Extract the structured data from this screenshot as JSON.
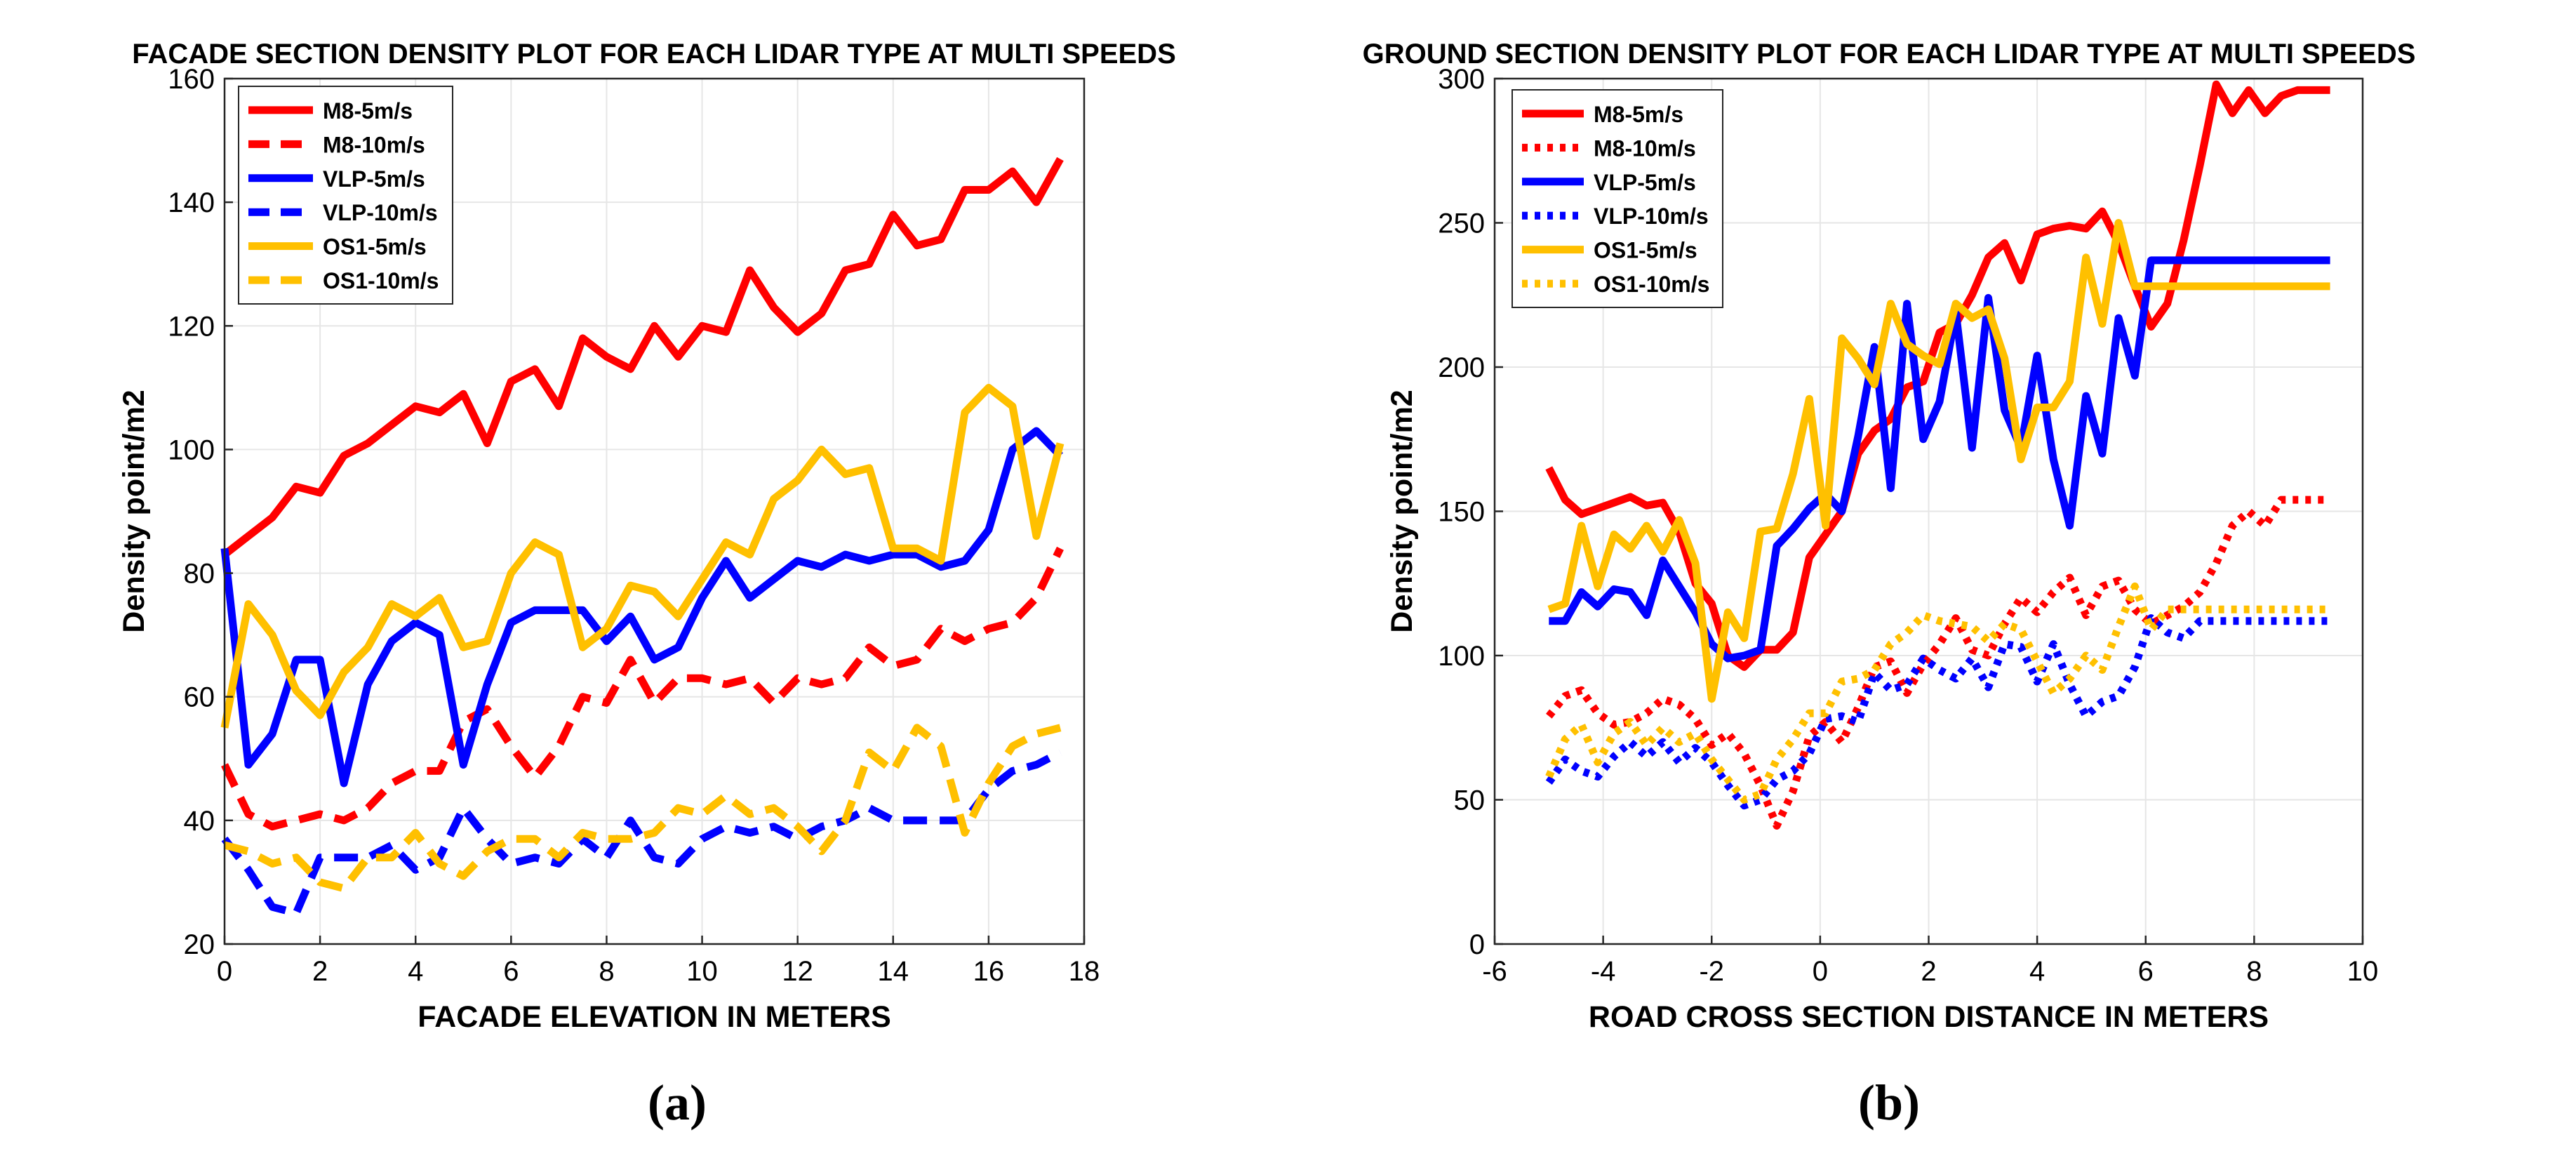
{
  "chart_data": [
    {
      "type": "line",
      "title": "FACADE SECTION DENSITY PLOT FOR EACH LIDAR TYPE AT MULTI SPEEDS",
      "xlabel": "FACADE ELEVATION IN METERS",
      "ylabel": "Density point/m2",
      "xlim": [
        0,
        18
      ],
      "ylim": [
        20,
        160
      ],
      "xticks": [
        0,
        2,
        4,
        6,
        8,
        10,
        12,
        14,
        16,
        18
      ],
      "yticks": [
        20,
        40,
        60,
        80,
        100,
        120,
        140,
        160
      ],
      "grid": true,
      "legend_position": "top-left",
      "caption": "(a)",
      "x": [
        0,
        0.5,
        1,
        1.5,
        2,
        2.5,
        3,
        3.5,
        4,
        4.5,
        5,
        5.5,
        6,
        6.5,
        7,
        7.5,
        8,
        8.5,
        9,
        9.5,
        10,
        10.5,
        11,
        11.5,
        12,
        12.5,
        13,
        13.5,
        14,
        14.5,
        15,
        15.5,
        16,
        16.5,
        17,
        17.5
      ],
      "series": [
        {
          "name": "M8-5m/s",
          "color": "#ff0000",
          "style": "solid",
          "values": [
            83,
            86,
            89,
            94,
            93,
            99,
            101,
            104,
            107,
            106,
            109,
            101,
            111,
            113,
            107,
            118,
            115,
            113,
            120,
            115,
            120,
            119,
            129,
            123,
            119,
            122,
            129,
            130,
            138,
            133,
            134,
            142,
            142,
            145,
            140,
            147
          ]
        },
        {
          "name": "M8-10m/s",
          "color": "#ff0000",
          "style": "dashed",
          "values": [
            49,
            41,
            39,
            40,
            41,
            40,
            42,
            46,
            48,
            48,
            56,
            58,
            52,
            47,
            52,
            60,
            59,
            66,
            59,
            63,
            63,
            62,
            63,
            59,
            63,
            62,
            63,
            68,
            65,
            66,
            71,
            69,
            71,
            72,
            76,
            84
          ]
        },
        {
          "name": "VLP-5m/s",
          "color": "#0000ff",
          "style": "solid",
          "values": [
            84,
            49,
            54,
            66,
            66,
            46,
            62,
            69,
            72,
            70,
            49,
            62,
            72,
            74,
            74,
            74,
            69,
            73,
            66,
            68,
            76,
            82,
            76,
            79,
            82,
            81,
            83,
            82,
            83,
            83,
            81,
            82,
            87,
            100,
            103,
            99
          ]
        },
        {
          "name": "VLP-10m/s",
          "color": "#0000ff",
          "style": "dashed",
          "values": [
            37,
            32,
            26,
            25,
            34,
            34,
            34,
            36,
            32,
            34,
            42,
            37,
            33,
            34,
            33,
            37,
            34,
            40,
            34,
            33,
            37,
            39,
            38,
            39,
            37,
            39,
            40,
            42,
            40,
            40,
            40,
            40,
            45,
            48,
            49,
            51
          ]
        },
        {
          "name": "OS1-5m/s",
          "color": "#ffc000",
          "style": "solid",
          "values": [
            55,
            75,
            70,
            61,
            57,
            64,
            68,
            75,
            73,
            76,
            68,
            69,
            80,
            85,
            83,
            68,
            71,
            78,
            77,
            73,
            79,
            85,
            83,
            92,
            95,
            100,
            96,
            97,
            84,
            84,
            82,
            106,
            110,
            107,
            86,
            101
          ]
        },
        {
          "name": "OS1-10m/s",
          "color": "#ffc000",
          "style": "dashed",
          "values": [
            36,
            35,
            33,
            34,
            30,
            29,
            34,
            34,
            38,
            33,
            31,
            35,
            37,
            37,
            34,
            38,
            37,
            37,
            38,
            42,
            41,
            44,
            41,
            42,
            39,
            35,
            40,
            51,
            48,
            55,
            52,
            38,
            46,
            52,
            54,
            55
          ]
        }
      ]
    },
    {
      "type": "line",
      "title": "GROUND SECTION DENSITY PLOT FOR EACH LIDAR TYPE AT MULTI SPEEDS",
      "xlabel": "ROAD CROSS SECTION DISTANCE IN METERS",
      "ylabel": "Density point/m2",
      "xlim": [
        -6,
        10
      ],
      "ylim": [
        0,
        300
      ],
      "xticks": [
        -6,
        -4,
        -2,
        0,
        2,
        4,
        6,
        8,
        10
      ],
      "yticks": [
        0,
        50,
        100,
        150,
        200,
        250,
        300
      ],
      "grid": true,
      "legend_position": "top-left",
      "caption": "(b)",
      "x": [
        -5,
        -4.7,
        -4.4,
        -4.1,
        -3.8,
        -3.5,
        -3.2,
        -2.9,
        -2.6,
        -2.3,
        -2,
        -1.7,
        -1.4,
        -1.1,
        -0.8,
        -0.5,
        -0.2,
        0.1,
        0.4,
        0.7,
        1,
        1.3,
        1.6,
        1.9,
        2.2,
        2.5,
        2.8,
        3.1,
        3.4,
        3.7,
        4,
        4.3,
        4.6,
        4.9,
        5.2,
        5.5,
        5.8,
        6.1,
        6.4,
        6.7,
        7,
        7.3,
        7.6,
        7.9,
        8.2,
        8.5,
        8.8,
        9.1,
        9.4
      ],
      "series": [
        {
          "name": "M8-5m/s",
          "color": "#ff0000",
          "style": "solid",
          "values": [
            165,
            154,
            149,
            151,
            153,
            155,
            152,
            153,
            143,
            125,
            118,
            100,
            96,
            102,
            102,
            108,
            134,
            142,
            150,
            170,
            178,
            182,
            193,
            195,
            212,
            215,
            225,
            238,
            243,
            230,
            246,
            248,
            249,
            248,
            254,
            243,
            228,
            214,
            222,
            244,
            270,
            298,
            288,
            296,
            288,
            294,
            296,
            296,
            296
          ]
        },
        {
          "name": "M8-10m/s",
          "color": "#ff0000",
          "style": "dotted",
          "values": [
            79,
            86,
            88,
            80,
            76,
            77,
            80,
            85,
            83,
            78,
            69,
            73,
            66,
            55,
            41,
            53,
            72,
            77,
            70,
            82,
            96,
            98,
            87,
            97,
            104,
            113,
            102,
            100,
            111,
            120,
            115,
            122,
            127,
            114,
            124,
            126,
            116,
            111,
            114,
            117,
            122,
            132,
            145,
            150,
            145,
            154,
            154,
            154,
            154
          ]
        },
        {
          "name": "VLP-5m/s",
          "color": "#0000ff",
          "style": "solid",
          "values": [
            112,
            112,
            122,
            117,
            123,
            122,
            114,
            133,
            124,
            115,
            104,
            99,
            100,
            102,
            138,
            144,
            151,
            156,
            150,
            176,
            207,
            158,
            222,
            175,
            188,
            219,
            172,
            224,
            185,
            172,
            204,
            168,
            145,
            190,
            170,
            217,
            197,
            237,
            237,
            237,
            237,
            237,
            237,
            237,
            237,
            237,
            237,
            237,
            237
          ]
        },
        {
          "name": "VLP-10m/s",
          "color": "#0000ff",
          "style": "dotted",
          "values": [
            56,
            64,
            60,
            58,
            65,
            70,
            65,
            70,
            63,
            68,
            63,
            55,
            48,
            50,
            57,
            60,
            66,
            78,
            79,
            77,
            94,
            88,
            90,
            99,
            95,
            92,
            99,
            89,
            104,
            103,
            91,
            104,
            90,
            79,
            84,
            86,
            96,
            113,
            108,
            106,
            112,
            112,
            112,
            112,
            112,
            112,
            112,
            112,
            112
          ]
        },
        {
          "name": "OS1-5m/s",
          "color": "#ffc000",
          "style": "solid",
          "values": [
            116,
            118,
            145,
            124,
            142,
            137,
            145,
            136,
            147,
            132,
            85,
            115,
            106,
            143,
            144,
            163,
            189,
            145,
            210,
            203,
            194,
            222,
            208,
            204,
            201,
            222,
            217,
            220,
            203,
            168,
            186,
            186,
            195,
            238,
            215,
            250,
            228,
            228,
            228,
            228,
            228,
            228,
            228,
            228,
            228,
            228,
            228,
            228,
            228
          ]
        },
        {
          "name": "OS1-10m/s",
          "color": "#ffc000",
          "style": "dotted",
          "values": [
            58,
            71,
            76,
            63,
            73,
            77,
            69,
            75,
            70,
            73,
            64,
            57,
            50,
            52,
            64,
            71,
            80,
            80,
            91,
            92,
            95,
            104,
            108,
            114,
            112,
            111,
            110,
            105,
            111,
            109,
            98,
            87,
            92,
            100,
            95,
            110,
            124,
            109,
            116,
            116,
            116,
            116,
            116,
            116,
            116,
            116,
            116,
            116,
            116
          ]
        }
      ]
    }
  ]
}
